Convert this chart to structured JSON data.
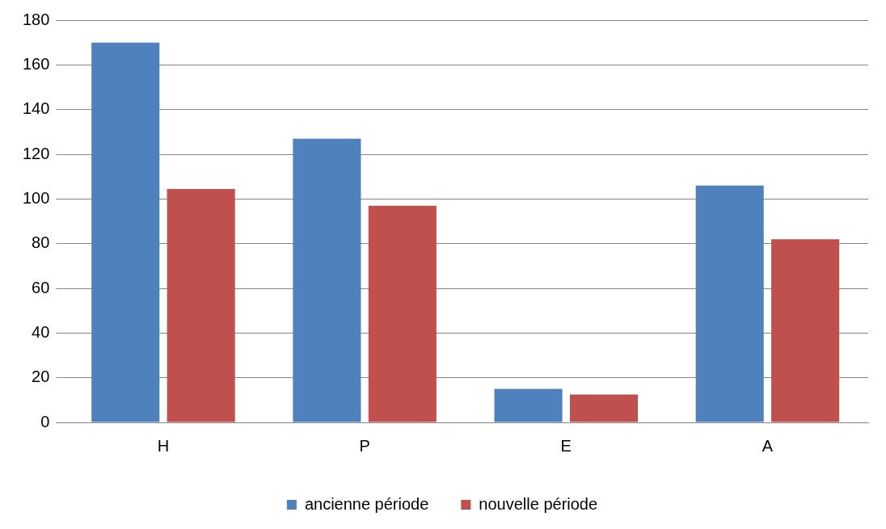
{
  "chart_data": {
    "type": "bar",
    "categories": [
      "H",
      "P",
      "E",
      "A"
    ],
    "series": [
      {
        "name": "ancienne période",
        "color": "#4f81bd",
        "values": [
          170,
          127,
          15,
          106
        ]
      },
      {
        "name": "nouvelle période",
        "color": "#c0504d",
        "values": [
          104.5,
          97,
          12.5,
          82
        ]
      }
    ],
    "ylim": [
      0,
      180
    ],
    "yticks": [
      0,
      20,
      40,
      60,
      80,
      100,
      120,
      140,
      160,
      180
    ],
    "grid": "y",
    "legend": "bottom"
  }
}
